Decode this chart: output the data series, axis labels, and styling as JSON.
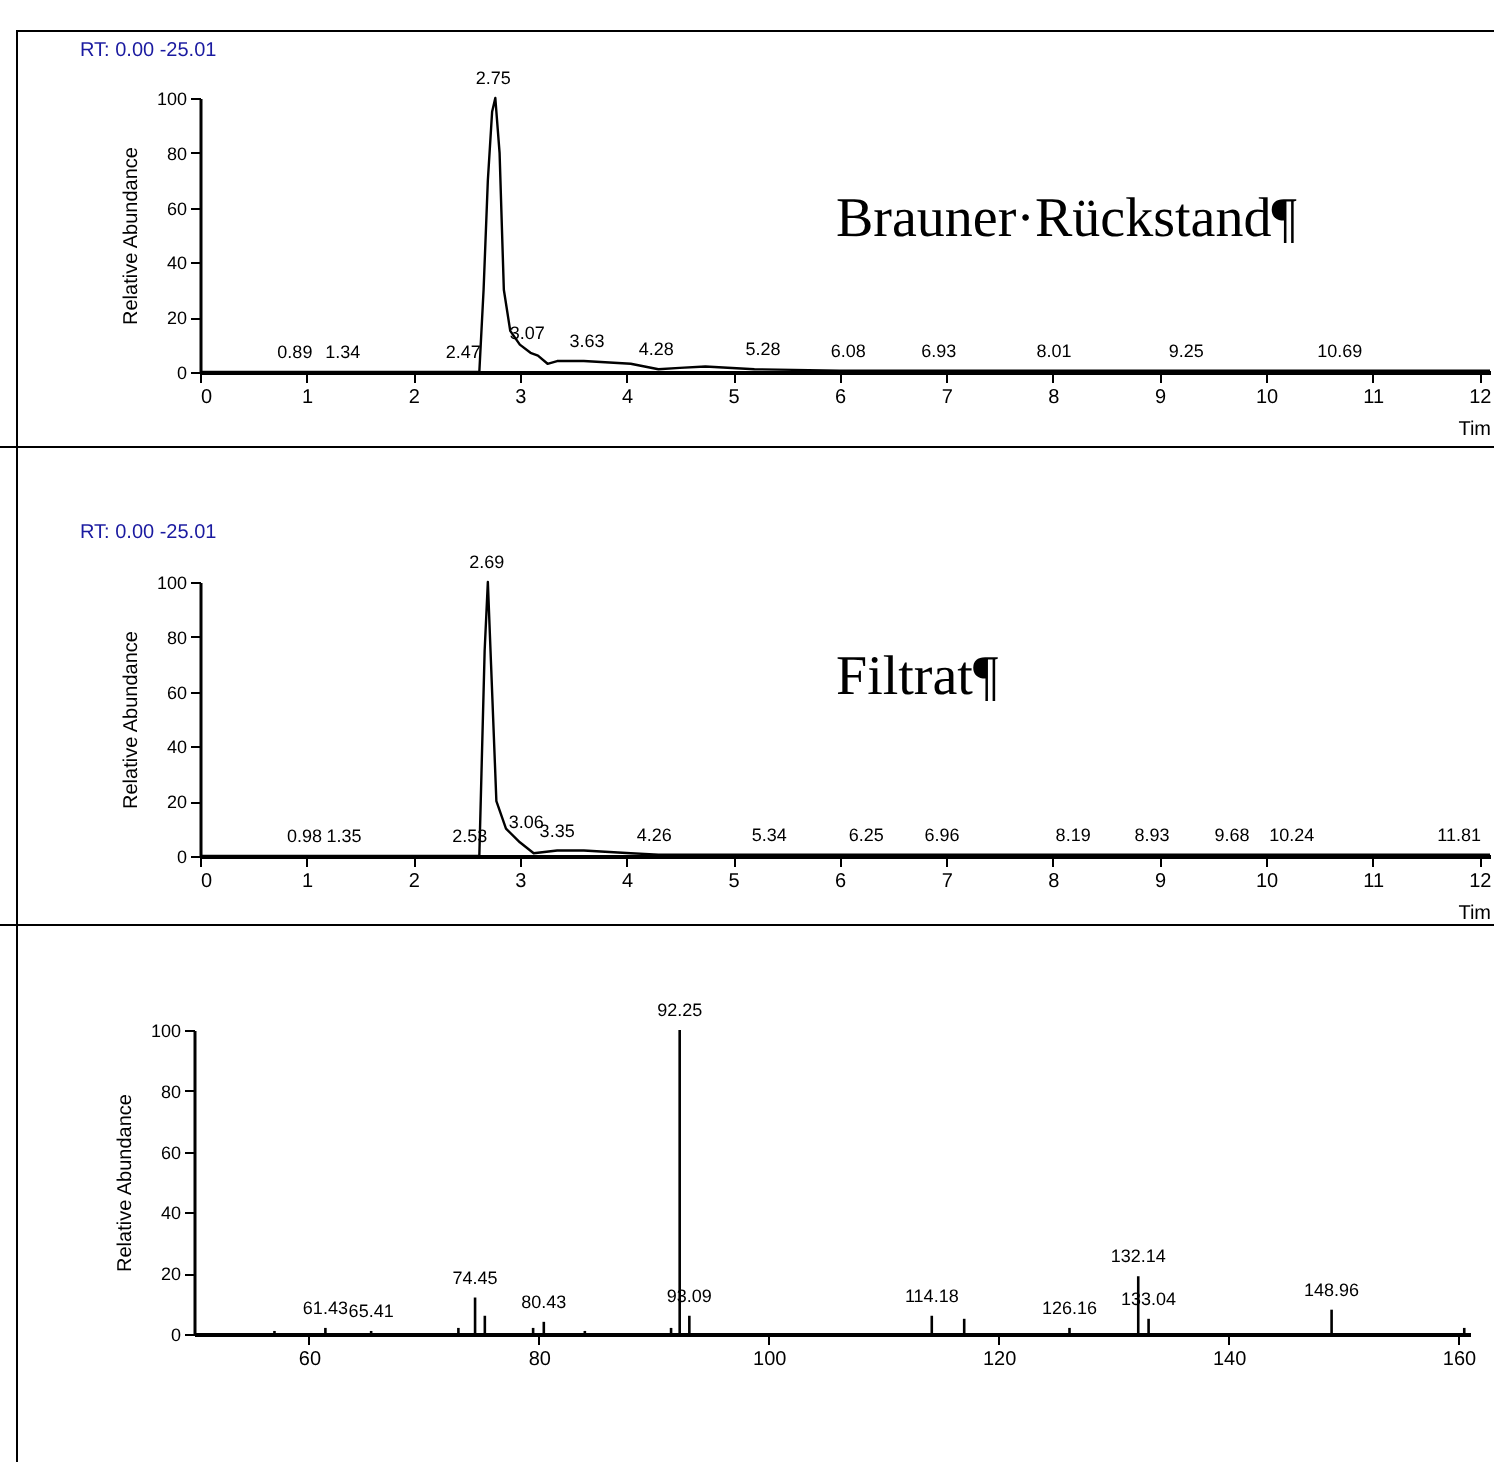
{
  "chart_data": [
    {
      "type": "line",
      "xlabel": "Tim",
      "ylabel": "Relative Abundance",
      "xlim": [
        0,
        12.1
      ],
      "ylim": [
        0,
        100
      ],
      "xticks": [
        0,
        1,
        2,
        3,
        4,
        5,
        6,
        7,
        8,
        9,
        10,
        11,
        12
      ],
      "yticks": [
        0,
        20,
        40,
        60,
        80,
        100
      ],
      "grid": false,
      "marker": "none",
      "line_style": "solid",
      "series": [
        {
          "color": "#000000",
          "x": [
            0,
            0.5,
            1,
            1.5,
            2,
            2.5,
            2.62,
            2.66,
            2.7,
            2.74,
            2.77,
            2.81,
            2.85,
            2.91,
            3.0,
            3.1,
            3.17,
            3.26,
            3.35,
            3.6,
            4.04,
            4.3,
            4.5,
            4.74,
            5.2,
            6,
            7,
            8,
            9,
            10,
            11,
            12.1
          ],
          "values": [
            0,
            0,
            0,
            0,
            0,
            0,
            0,
            30,
            70,
            95,
            100,
            80,
            30,
            15,
            10,
            7,
            6,
            3,
            4,
            4,
            3,
            1,
            1.5,
            2,
            1,
            0.5,
            0.5,
            0.5,
            0.5,
            0.5,
            0.5,
            0.5
          ]
        }
      ],
      "annotations": [
        "RT: 0.00 -25.01",
        "Brauner·Rückstand¶",
        {
          "text": "2.75",
          "x": 2.75,
          "y": 100
        },
        {
          "text": "0.89",
          "x": 0.89,
          "y": 0
        },
        {
          "text": "1.34",
          "x": 1.34,
          "y": 0
        },
        {
          "text": "2.47",
          "x": 2.47,
          "y": 0
        },
        {
          "text": "3.07",
          "x": 3.07,
          "y": 7
        },
        {
          "text": "3.63",
          "x": 3.63,
          "y": 4
        },
        {
          "text": "4.28",
          "x": 4.28,
          "y": 1
        },
        {
          "text": "5.28",
          "x": 5.28,
          "y": 1
        },
        {
          "text": "6.08",
          "x": 6.08,
          "y": 0.5
        },
        {
          "text": "6.93",
          "x": 6.93,
          "y": 0.5
        },
        {
          "text": "8.01",
          "x": 8.01,
          "y": 0.5
        },
        {
          "text": "9.25",
          "x": 9.25,
          "y": 0.5
        },
        {
          "text": "10.69",
          "x": 10.69,
          "y": 0.5
        }
      ]
    },
    {
      "type": "line",
      "xlabel": "Tim",
      "ylabel": "Relative Abundance",
      "xlim": [
        0,
        12.1
      ],
      "ylim": [
        0,
        100
      ],
      "xticks": [
        0,
        1,
        2,
        3,
        4,
        5,
        6,
        7,
        8,
        9,
        10,
        11,
        12
      ],
      "yticks": [
        0,
        20,
        40,
        60,
        80,
        100
      ],
      "grid": false,
      "marker": "none",
      "line_style": "solid",
      "series": [
        {
          "color": "#000000",
          "x": [
            0,
            0.5,
            1,
            1.5,
            2,
            2.5,
            2.62,
            2.64,
            2.67,
            2.7,
            2.73,
            2.78,
            2.87,
            3.0,
            3.13,
            3.35,
            3.6,
            4.04,
            4.3,
            5,
            6,
            7,
            8,
            9,
            10,
            11,
            12.1
          ],
          "values": [
            0,
            0,
            0,
            0,
            0,
            0,
            0,
            30,
            75,
            100,
            70,
            20,
            10,
            5,
            1,
            2,
            2,
            1,
            0.5,
            0.5,
            0.5,
            0.5,
            0.5,
            0.5,
            0.5,
            0.5,
            0.5
          ]
        }
      ],
      "annotations": [
        "RT: 0.00 -25.01",
        "Filtrat¶",
        {
          "text": "2.69",
          "x": 2.69,
          "y": 100
        },
        {
          "text": "0.98",
          "x": 0.98,
          "y": 0
        },
        {
          "text": "1.35",
          "x": 1.35,
          "y": 0
        },
        {
          "text": "2.53",
          "x": 2.53,
          "y": 0
        },
        {
          "text": "3.06",
          "x": 3.06,
          "y": 5
        },
        {
          "text": "3.35",
          "x": 3.35,
          "y": 2
        },
        {
          "text": "4.26",
          "x": 4.26,
          "y": 0.5
        },
        {
          "text": "5.34",
          "x": 5.34,
          "y": 0.5
        },
        {
          "text": "6.25",
          "x": 6.25,
          "y": 0.5
        },
        {
          "text": "6.96",
          "x": 6.96,
          "y": 0.5
        },
        {
          "text": "8.19",
          "x": 8.19,
          "y": 0.5
        },
        {
          "text": "8.93",
          "x": 8.93,
          "y": 0.5
        },
        {
          "text": "9.68",
          "x": 9.68,
          "y": 0.5
        },
        {
          "text": "10.24",
          "x": 10.24,
          "y": 0.5
        },
        {
          "text": "11.81",
          "x": 11.81,
          "y": 0.5
        }
      ]
    },
    {
      "type": "bar",
      "ylabel": "Relative Abundance",
      "xlim": [
        50,
        161
      ],
      "ylim": [
        0,
        100
      ],
      "xticks": [
        60,
        80,
        100,
        120,
        140,
        160
      ],
      "yticks": [
        0,
        20,
        40,
        60,
        80,
        100
      ],
      "grid": false,
      "x": [
        57,
        61.43,
        65.41,
        73,
        74.45,
        75.3,
        79.5,
        80.43,
        84,
        91.5,
        92.25,
        93.09,
        114.18,
        117,
        126.16,
        132.14,
        133.04,
        148.96,
        160.5
      ],
      "series": [
        {
          "color": "#000000",
          "values": [
            1,
            2,
            1,
            2,
            12,
            6,
            2,
            4,
            1,
            2,
            100,
            6,
            6,
            5,
            2,
            19,
            5,
            8,
            2
          ]
        }
      ],
      "annotations": [
        {
          "text": "61.43",
          "x": 61.43,
          "y": 2
        },
        {
          "text": "65.41",
          "x": 65.41,
          "y": 1
        },
        {
          "text": "74.45",
          "x": 74.45,
          "y": 12
        },
        {
          "text": "80.43",
          "x": 80.43,
          "y": 4
        },
        {
          "text": "92.25",
          "x": 92.25,
          "y": 100
        },
        {
          "text": "93.09",
          "x": 93.09,
          "y": 6
        },
        {
          "text": "114.18",
          "x": 114.18,
          "y": 6
        },
        {
          "text": "126.16",
          "x": 126.16,
          "y": 2
        },
        {
          "text": "132.14",
          "x": 132.14,
          "y": 19
        },
        {
          "text": "133.04",
          "x": 133.04,
          "y": 5
        },
        {
          "text": "148.96",
          "x": 148.96,
          "y": 8
        }
      ]
    }
  ]
}
